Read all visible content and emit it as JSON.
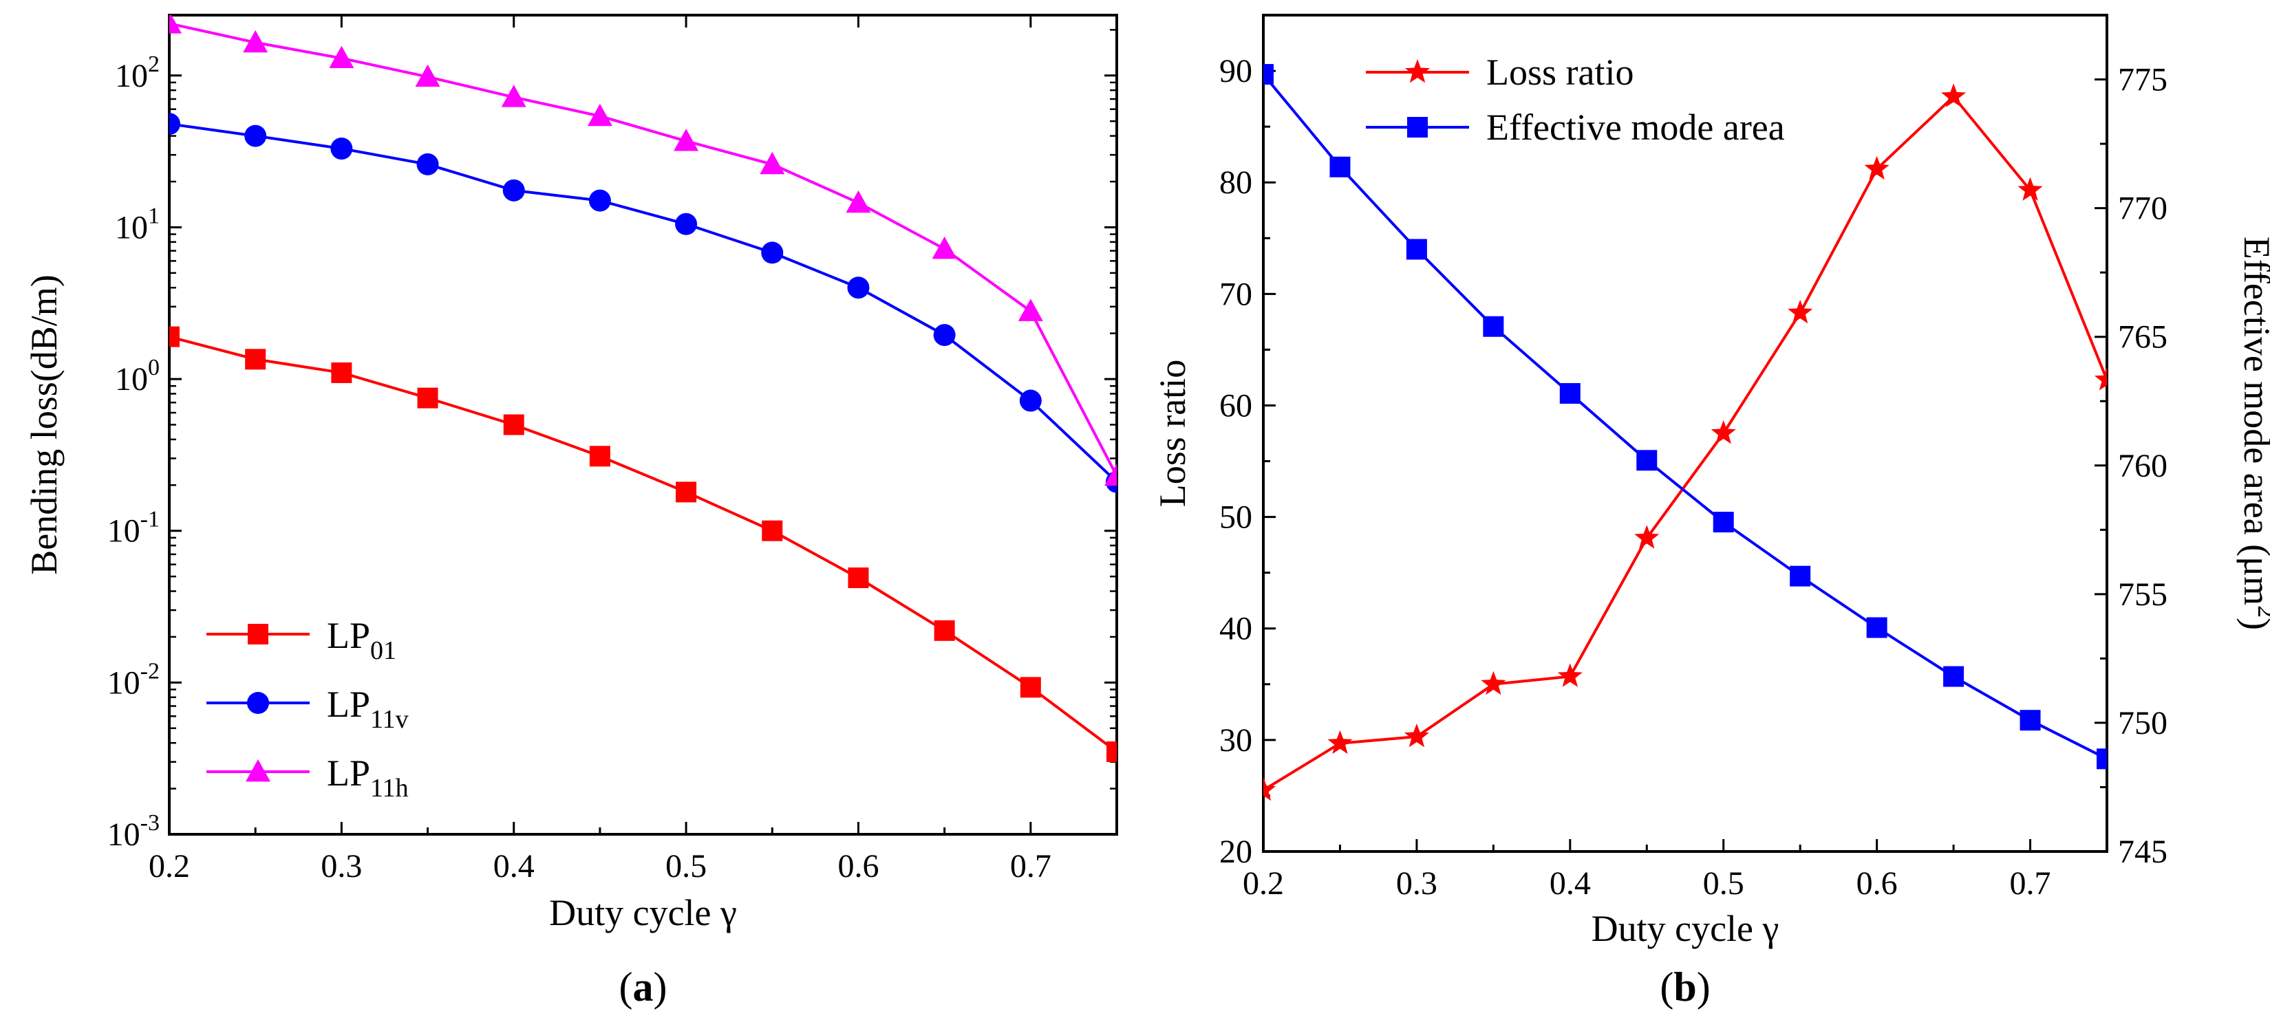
{
  "chart_data": [
    {
      "type": "line",
      "panel_label": "(a)",
      "panel_letter": "a",
      "xlabel": "Duty cycle γ",
      "ylabel": "Bending loss(dB/m)",
      "yscale": "log",
      "xlim": [
        0.2,
        0.75
      ],
      "ylim": [
        0.001,
        250
      ],
      "x_ticks": [
        0.2,
        0.3,
        0.4,
        0.5,
        0.6,
        0.7
      ],
      "x_tick_labels": [
        "0.2",
        "0.3",
        "0.4",
        "0.5",
        "0.6",
        "0.7"
      ],
      "y_ticks": [
        0.001,
        0.01,
        0.1,
        1,
        10,
        100
      ],
      "y_tick_labels": [
        {
          "base": "10",
          "exp": "-3"
        },
        {
          "base": "10",
          "exp": "-2"
        },
        {
          "base": "10",
          "exp": "-1"
        },
        {
          "base": "10",
          "exp": "0"
        },
        {
          "base": "10",
          "exp": "1"
        },
        {
          "base": "10",
          "exp": "2"
        }
      ],
      "legend_position": "bottom-left",
      "x": [
        0.2,
        0.25,
        0.3,
        0.35,
        0.4,
        0.45,
        0.5,
        0.55,
        0.6,
        0.65,
        0.7,
        0.75
      ],
      "series": [
        {
          "name": "LP01",
          "label_main": "LP",
          "label_sub": "01",
          "color": "#ff0000",
          "marker": "square",
          "values": [
            1.9,
            1.35,
            1.1,
            0.75,
            0.5,
            0.31,
            0.18,
            0.1,
            0.049,
            0.022,
            0.0093,
            0.0035
          ]
        },
        {
          "name": "LP11v",
          "label_main": "LP",
          "label_sub": "11v",
          "color": "#0000ff",
          "marker": "circle",
          "values": [
            48,
            40,
            33,
            26,
            17.5,
            15,
            10.5,
            6.8,
            4.0,
            1.95,
            0.72,
            0.21
          ]
        },
        {
          "name": "LP11h",
          "label_main": "LP",
          "label_sub": "11h",
          "color": "#ff00ff",
          "marker": "triangle",
          "values": [
            220,
            165,
            130,
            98,
            72,
            54,
            37,
            26,
            14.5,
            7.2,
            2.8,
            0.23
          ]
        }
      ]
    },
    {
      "type": "line",
      "panel_label": "(b)",
      "panel_letter": "b",
      "xlabel": "Duty cycle γ",
      "ylabel": "Loss ratio",
      "ylabel_right": "Effective mode area (μm",
      "ylabel_right_sup": "2",
      "ylabel_right_end": ")",
      "xlim": [
        0.2,
        0.75
      ],
      "ylim": [
        20,
        95
      ],
      "ylim_right": [
        745,
        777.5
      ],
      "x_ticks": [
        0.2,
        0.3,
        0.4,
        0.5,
        0.6,
        0.7
      ],
      "x_tick_labels": [
        "0.2",
        "0.3",
        "0.4",
        "0.5",
        "0.6",
        "0.7"
      ],
      "y_ticks": [
        20,
        30,
        40,
        50,
        60,
        70,
        80,
        90
      ],
      "y_tick_labels": [
        "20",
        "30",
        "40",
        "50",
        "60",
        "70",
        "80",
        "90"
      ],
      "y_ticks_right": [
        745,
        750,
        755,
        760,
        765,
        770,
        775
      ],
      "y_tick_labels_right": [
        "745",
        "750",
        "755",
        "760",
        "765",
        "770",
        "775"
      ],
      "legend_position": "top-left",
      "x": [
        0.2,
        0.25,
        0.3,
        0.35,
        0.4,
        0.45,
        0.5,
        0.55,
        0.6,
        0.65,
        0.7,
        0.75
      ],
      "series": [
        {
          "name": "Loss ratio",
          "label": "Loss ratio",
          "color": "#ff0000",
          "marker": "star",
          "axis": "left",
          "values": [
            25.5,
            29.7,
            30.3,
            35.0,
            35.7,
            48.1,
            57.5,
            68.3,
            81.2,
            87.7,
            79.3,
            62.3
          ]
        },
        {
          "name": "Effective mode area",
          "label": "Effective mode area",
          "color": "#0000ff",
          "marker": "square",
          "axis": "right",
          "values": [
            775.2,
            771.6,
            768.4,
            765.4,
            762.8,
            760.2,
            757.8,
            755.7,
            753.7,
            751.8,
            750.1,
            748.6
          ]
        }
      ]
    }
  ]
}
